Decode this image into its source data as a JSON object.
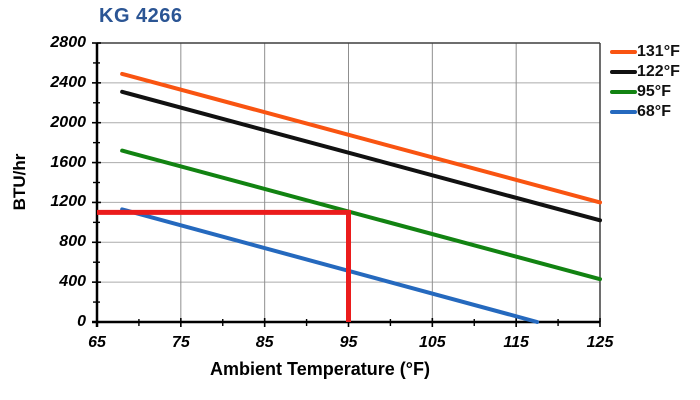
{
  "chart_data": {
    "type": "line",
    "title": "KG 4266",
    "title_color": "#2B5594",
    "xlabel": "Ambient Temperature (°F)",
    "ylabel": "BTU/hr",
    "xlim": [
      65,
      125
    ],
    "ylim": [
      0,
      2800
    ],
    "xticks": [
      65,
      75,
      85,
      95,
      105,
      115,
      125
    ],
    "yticks": [
      0,
      400,
      800,
      1200,
      1600,
      2000,
      2400,
      2800
    ],
    "x_minor_step": 5,
    "y_minor_step": 200,
    "grid": "major-only",
    "gridline_color_vertical": "#8F8F8F",
    "gridline_color_horizontal": "#ABABAB",
    "axis_color": "#000000",
    "frame_color": "#3F3F3F",
    "legend_position": "right-outside",
    "series": [
      {
        "name": "131°F",
        "color": "#F95411",
        "points": [
          [
            68,
            2490
          ],
          [
            125,
            1200
          ]
        ]
      },
      {
        "name": "122°F",
        "color": "#111111",
        "points": [
          [
            68,
            2310
          ],
          [
            125,
            1020
          ]
        ]
      },
      {
        "name": "95°F",
        "color": "#128312",
        "points": [
          [
            68,
            1720
          ],
          [
            125,
            430
          ]
        ]
      },
      {
        "name": "68°F",
        "color": "#2569BE",
        "points": [
          [
            68,
            1130
          ],
          [
            117.5,
            0
          ]
        ]
      }
    ],
    "annotations": [
      {
        "type": "reference-guide",
        "color": "#EB1C1C",
        "points": [
          [
            65,
            1100
          ],
          [
            95,
            1100
          ],
          [
            95,
            0
          ]
        ],
        "meaning": "1100 BTU/hr at 95 °F ambient"
      }
    ]
  }
}
